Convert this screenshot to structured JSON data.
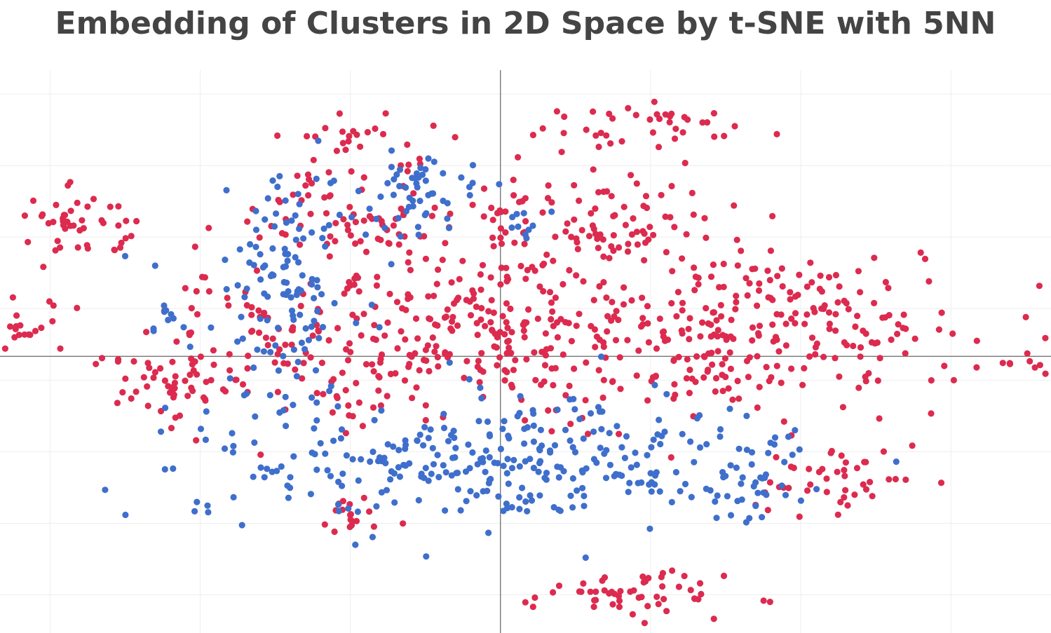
{
  "title": "Embedding of Clusters in 2D Space by t-SNE with 5NN",
  "colors": {
    "cluster_a": "#dc2b4f",
    "cluster_b": "#3f6fcc",
    "title": "#444444",
    "grid": "#eeeeee",
    "axis": "#444444"
  },
  "chart_data": {
    "type": "scatter",
    "title": "Embedding of Clusters in 2D Space by t-SNE with 5NN",
    "xlabel": "",
    "ylabel": "",
    "xlim": [
      -100,
      110
    ],
    "ylim": [
      -58,
      60
    ],
    "grid": true,
    "tick_labels_shown": false,
    "zero_lines": true,
    "series": [
      {
        "color": "#dc2b4f",
        "regions": [
          {
            "cx": 0,
            "cy": 5,
            "rx": 75,
            "ry": 18,
            "n": 520
          },
          {
            "cx": 60,
            "cy": 8,
            "rx": 30,
            "ry": 12,
            "n": 120
          },
          {
            "cx": 20,
            "cy": 28,
            "rx": 22,
            "ry": 9,
            "n": 90
          },
          {
            "cx": -28,
            "cy": 30,
            "rx": 20,
            "ry": 9,
            "n": 70
          },
          {
            "cx": -85,
            "cy": 28,
            "rx": 12,
            "ry": 6,
            "n": 45
          },
          {
            "cx": -65,
            "cy": -6,
            "rx": 14,
            "ry": 7,
            "n": 45
          },
          {
            "cx": 68,
            "cy": -26,
            "rx": 14,
            "ry": 7,
            "n": 45
          },
          {
            "cx": 25,
            "cy": -50,
            "rx": 18,
            "ry": 4,
            "n": 55
          },
          {
            "cx": -28,
            "cy": -33,
            "rx": 10,
            "ry": 5,
            "n": 18
          },
          {
            "cx": 103,
            "cy": -2,
            "rx": 6,
            "ry": 2,
            "n": 10
          },
          {
            "cx": -96,
            "cy": 5,
            "rx": 3,
            "ry": 2,
            "n": 10
          },
          {
            "cx": 30,
            "cy": 48,
            "rx": 22,
            "ry": 5,
            "n": 40
          },
          {
            "cx": -25,
            "cy": 46,
            "rx": 16,
            "ry": 4,
            "n": 25
          }
        ],
        "outliers": [
          [
            25.5,
            52
          ]
        ]
      },
      {
        "color": "#3f6fcc",
        "regions": [
          {
            "cx": 0,
            "cy": -22,
            "rx": 55,
            "ry": 12,
            "n": 320
          },
          {
            "cx": -42,
            "cy": 15,
            "rx": 12,
            "ry": 20,
            "n": 120
          },
          {
            "cx": -18,
            "cy": 34,
            "rx": 13,
            "ry": 9,
            "n": 55
          },
          {
            "cx": 50,
            "cy": -28,
            "rx": 8,
            "ry": 6,
            "n": 25
          },
          {
            "cx": 5,
            "cy": 28,
            "rx": 3,
            "ry": 3,
            "n": 10
          },
          {
            "cx": -67,
            "cy": 8,
            "rx": 4,
            "ry": 3,
            "n": 8
          }
        ],
        "outliers": [
          [
            -79,
            -28
          ],
          [
            -75,
            21
          ],
          [
            -29,
            -39.5
          ],
          [
            -69,
            19
          ],
          [
            -62,
            2
          ]
        ]
      }
    ]
  }
}
